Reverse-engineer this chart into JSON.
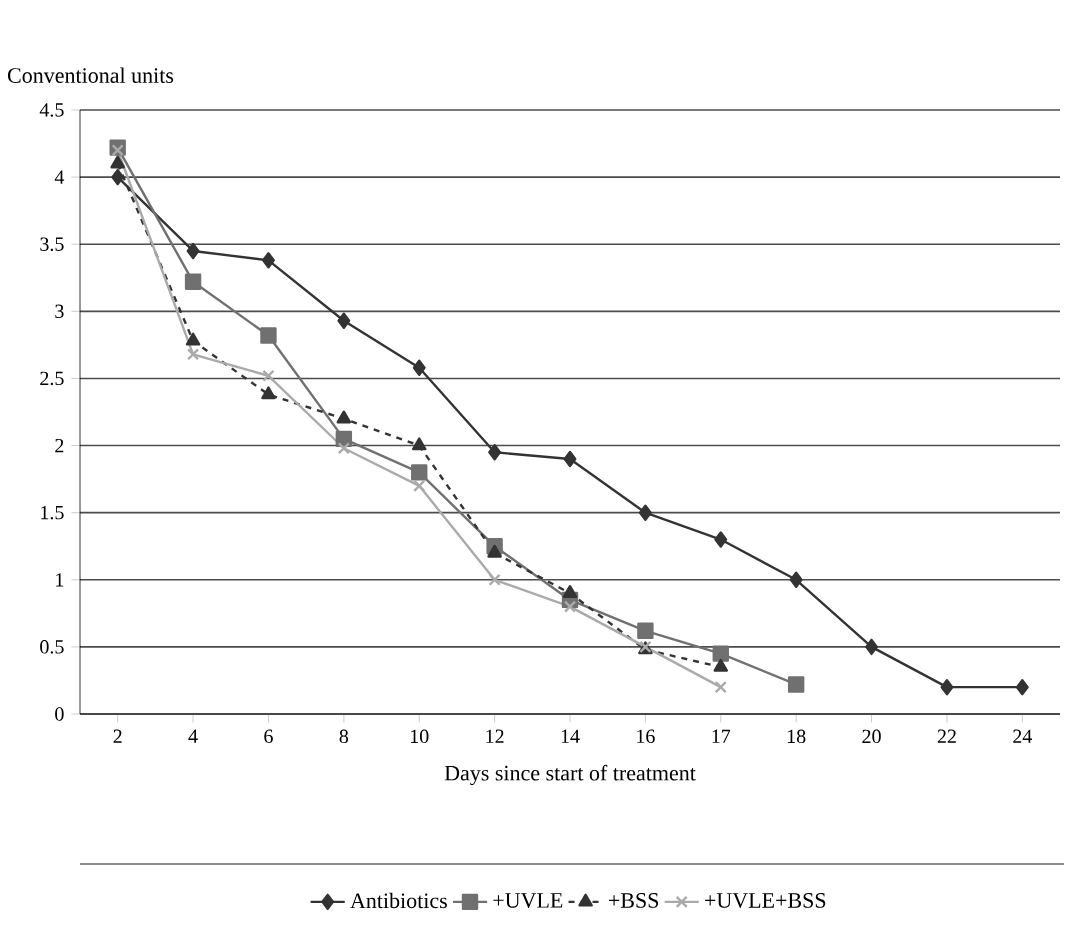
{
  "chart_data": {
    "type": "line",
    "ylabel": "Conventional units",
    "xlabel": "Days since start of treatment",
    "categories": [
      "2",
      "4",
      "6",
      "8",
      "10",
      "12",
      "14",
      "16",
      "17",
      "18",
      "20",
      "22",
      "24"
    ],
    "ylim": [
      0,
      4.5
    ],
    "yticks": [
      0,
      {
        "value": 0.5,
        "label": "0.5"
      },
      1,
      {
        "value": 1.5,
        "label": "1.5"
      },
      2,
      {
        "value": 2.5,
        "label": "2.5"
      },
      3,
      {
        "value": 3.5,
        "label": "3.5"
      },
      4,
      {
        "value": 4.5,
        "label": "4.5"
      }
    ],
    "grid": "y",
    "legend": "bottom",
    "series": [
      {
        "name": "Antibiotics",
        "color": "#333333",
        "marker": "diamond",
        "line_style": "solid",
        "values": [
          4.0,
          3.45,
          3.38,
          2.93,
          2.58,
          1.95,
          1.9,
          1.5,
          1.3,
          1.0,
          0.5,
          0.2,
          0.2
        ]
      },
      {
        "name": "+UVLE",
        "color": "#707070",
        "marker": "square",
        "line_style": "solid",
        "values": [
          4.22,
          3.22,
          2.82,
          2.05,
          1.8,
          1.25,
          0.85,
          0.62,
          0.45,
          0.22,
          null,
          null,
          null
        ]
      },
      {
        "name": "+BSS",
        "color": "#333333",
        "marker": "triangle",
        "line_style": "dashed",
        "values": [
          4.1,
          2.78,
          2.38,
          2.2,
          2.0,
          1.2,
          0.9,
          0.48,
          0.35,
          null,
          null,
          null,
          null
        ]
      },
      {
        "name": "+UVLE+BSS",
        "color": "#aaaaaa",
        "marker": "cross",
        "line_style": "solid",
        "values": [
          4.2,
          2.68,
          2.52,
          1.98,
          1.7,
          1.0,
          0.8,
          0.5,
          0.2,
          null,
          null,
          null,
          null
        ]
      }
    ]
  }
}
